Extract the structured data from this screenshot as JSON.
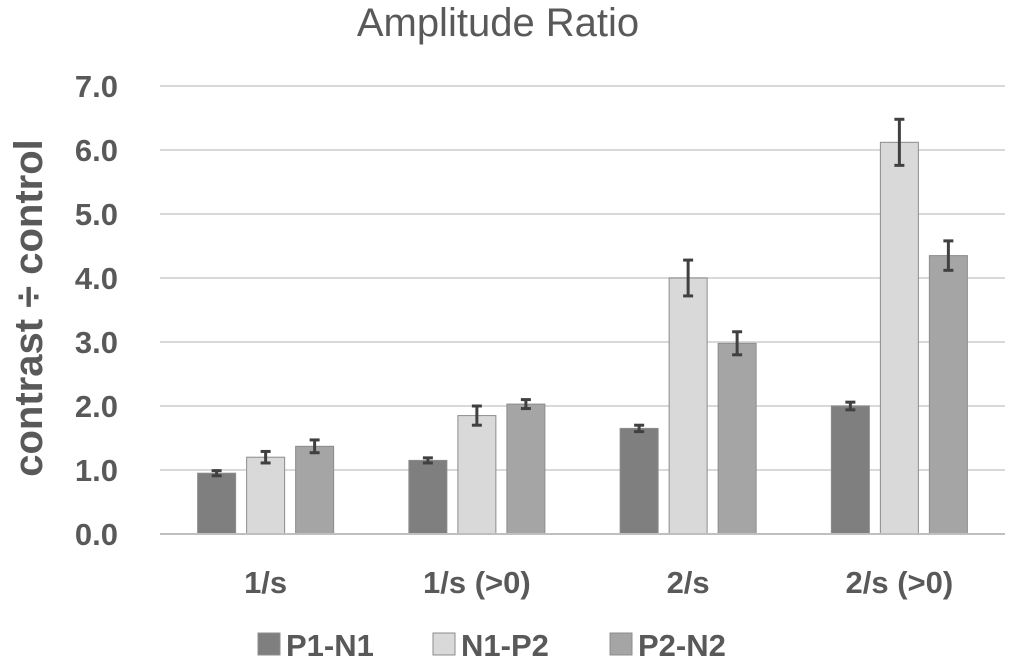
{
  "chart_data": {
    "type": "bar",
    "title": "Amplitude Ratio",
    "xlabel": "",
    "ylabel": "contrast ÷ control",
    "ylabel_parts": [
      "contrast",
      "÷",
      "control"
    ],
    "ylim": [
      0,
      7
    ],
    "yticks": [
      "0.0",
      "1.0",
      "2.0",
      "3.0",
      "4.0",
      "5.0",
      "6.0",
      "7.0"
    ],
    "categories": [
      "1/s",
      "1/s (>0)",
      "2/s",
      "2/s (>0)"
    ],
    "series": [
      {
        "name": "P1-N1",
        "color": "#7f7f7f",
        "values": [
          0.95,
          1.15,
          1.65,
          2.0
        ],
        "errors": [
          0.04,
          0.04,
          0.05,
          0.06
        ]
      },
      {
        "name": "N1-P2",
        "color": "#d9d9d9",
        "values": [
          1.2,
          1.85,
          4.0,
          6.12
        ],
        "errors": [
          0.09,
          0.15,
          0.28,
          0.36
        ]
      },
      {
        "name": "P2-N2",
        "color": "#a5a5a5",
        "values": [
          1.37,
          2.03,
          2.98,
          4.35
        ],
        "errors": [
          0.1,
          0.07,
          0.18,
          0.23
        ]
      }
    ],
    "grid": true,
    "legend_position": "bottom"
  }
}
